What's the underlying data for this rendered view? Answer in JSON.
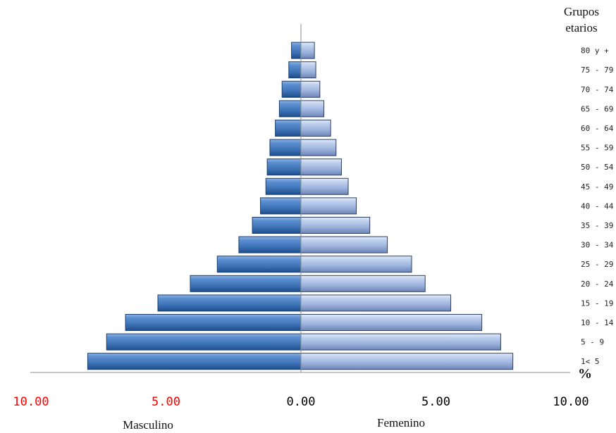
{
  "chart_data": {
    "type": "bar",
    "orientation": "horizontal-population-pyramid",
    "legend_title": [
      "Grupos",
      "etarios"
    ],
    "unit": "%",
    "male_label": "Masculino",
    "female_label": "Femenino",
    "categories": [
      "1< 5",
      "5 - 9",
      "10 - 14",
      "15 - 19",
      "20 - 24",
      "25 - 29",
      "30 - 34",
      "35 - 39",
      "40 - 44",
      "45 - 49",
      "50 - 54",
      "55 - 59",
      "60 - 64",
      "65 - 69",
      "70 - 74",
      "75 - 79",
      "80 y +"
    ],
    "series": [
      {
        "name": "Masculino",
        "values": [
          7.9,
          7.2,
          6.5,
          5.3,
          4.1,
          3.1,
          2.3,
          1.8,
          1.5,
          1.3,
          1.25,
          1.15,
          0.95,
          0.8,
          0.7,
          0.45,
          0.35
        ]
      },
      {
        "name": "Femenino",
        "values": [
          7.85,
          7.4,
          6.7,
          5.55,
          4.6,
          4.1,
          3.2,
          2.55,
          2.05,
          1.75,
          1.5,
          1.3,
          1.1,
          0.85,
          0.7,
          0.55,
          0.5
        ]
      }
    ],
    "x_ticks": [
      {
        "label": "10.00",
        "value": -10,
        "color": "#ff0000"
      },
      {
        "label": "5.00",
        "value": -5,
        "color": "#ff0000"
      },
      {
        "label": "0.00",
        "value": 0,
        "color": "#000000"
      },
      {
        "label": "5.00",
        "value": 5,
        "color": "#000000"
      },
      {
        "label": "10.00",
        "value": 10,
        "color": "#000000"
      }
    ],
    "xlim": [
      -10,
      10
    ],
    "colors": {
      "male": "#3f74b8",
      "female": "#9db3dc"
    }
  }
}
